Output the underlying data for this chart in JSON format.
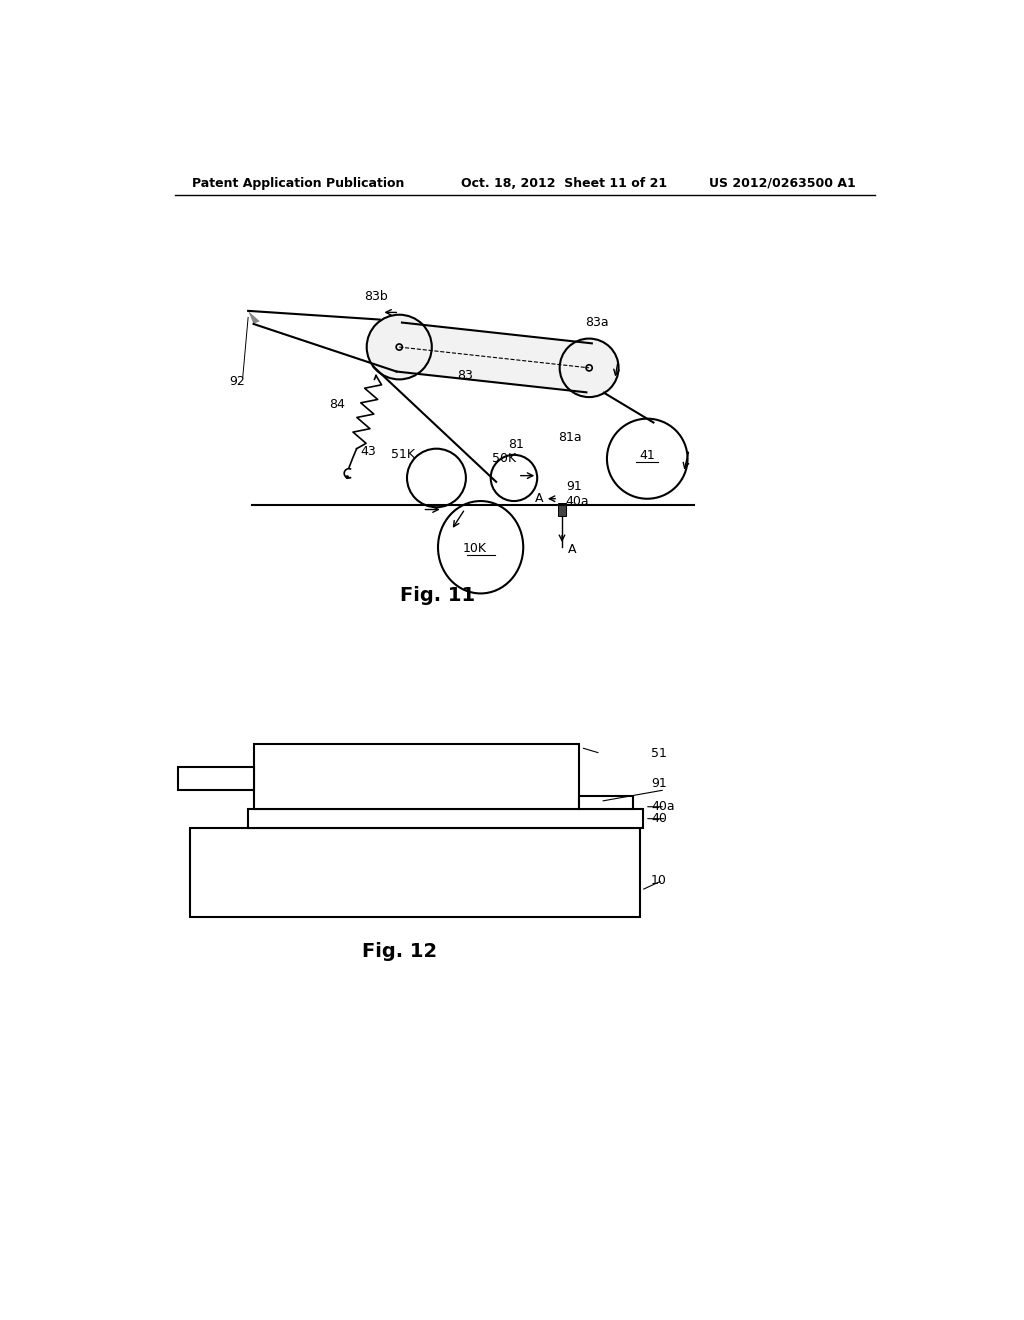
{
  "background_color": "#ffffff",
  "header_left": "Patent Application Publication",
  "header_middle": "Oct. 18, 2012  Sheet 11 of 21",
  "header_right": "US 2012/0263500 A1",
  "fig11_caption": "Fig. 11",
  "fig12_caption": "Fig. 12",
  "line_color": "#000000",
  "line_width": 1.5
}
